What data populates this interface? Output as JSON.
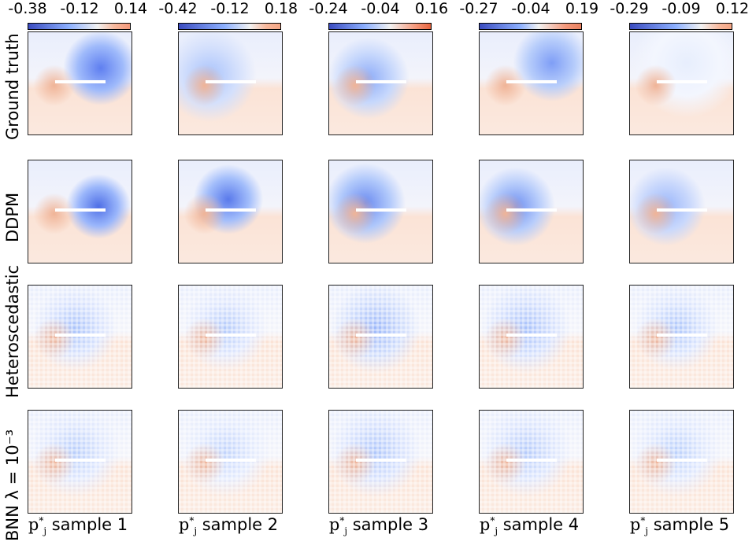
{
  "chart_data": {
    "type": "heatmap",
    "layout": "grid 4 rows x 5 columns of heatmap panels",
    "colormap": "coolwarm",
    "rows": [
      "Ground truth",
      "DDPM",
      "Heteroscedastic",
      "BNN λ = 10⁻³"
    ],
    "columns": [
      "sample 1",
      "sample 2",
      "sample 3",
      "sample 4",
      "sample 5"
    ],
    "column_prefix": "p",
    "column_prefix_sup": "*",
    "column_prefix_sub": "j",
    "colorbars": [
      {
        "ticks": [
          "-0.38",
          "-0.12",
          "0.14"
        ],
        "range": [
          -0.38,
          0.14
        ]
      },
      {
        "ticks": [
          "-0.42",
          "-0.12",
          "0.18"
        ],
        "range": [
          -0.42,
          0.18
        ]
      },
      {
        "ticks": [
          "-0.24",
          "-0.04",
          "0.16"
        ],
        "range": [
          -0.24,
          0.16
        ]
      },
      {
        "ticks": [
          "-0.27",
          "-0.04",
          "0.19"
        ],
        "range": [
          -0.27,
          0.19
        ]
      },
      {
        "ticks": [
          "-0.29",
          "-0.09",
          "0.12"
        ],
        "range": [
          -0.29,
          0.12
        ]
      }
    ]
  }
}
